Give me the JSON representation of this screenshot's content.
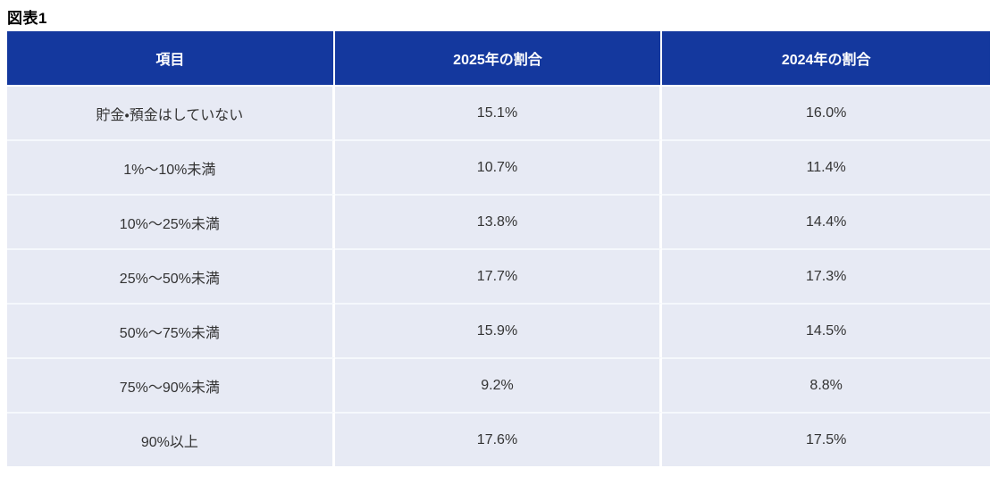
{
  "title": "図表1",
  "colors": {
    "header_bg": "#14389e",
    "header_text": "#ffffff",
    "row_bg": "#e7eaf4",
    "row_divider": "#f5f8fc",
    "column_divider": "#ffffff",
    "cell_text": "#333333",
    "title_text": "#000000"
  },
  "table": {
    "columns": [
      "項目",
      "2025年の割合",
      "2024年の割合"
    ],
    "rows": [
      {
        "item": "貯金・預金はしていない",
        "v2025": "15.1%",
        "v2024": "16.0%"
      },
      {
        "item": "1%～10%未満",
        "v2025": "10.7%",
        "v2024": "11.4%"
      },
      {
        "item": "10%～25%未満",
        "v2025": "13.8%",
        "v2024": "14.4%"
      },
      {
        "item": "25%～50%未満",
        "v2025": "17.7%",
        "v2024": "17.3%"
      },
      {
        "item": "50%～75%未満",
        "v2025": "15.9%",
        "v2024": "14.5%"
      },
      {
        "item": "75%～90%未満",
        "v2025": "9.2%",
        "v2024": "8.8%"
      },
      {
        "item": "90%以上",
        "v2025": "17.6%",
        "v2024": "17.5%"
      }
    ]
  },
  "chart_data": {
    "type": "table",
    "title": "図表1",
    "columns": [
      "項目",
      "2025年の割合",
      "2024年の割合"
    ],
    "categories": [
      "貯金・預金はしていない",
      "1%～10%未満",
      "10%～25%未満",
      "25%～50%未満",
      "50%～75%未満",
      "75%～90%未満",
      "90%以上"
    ],
    "series": [
      {
        "name": "2025年の割合",
        "values": [
          15.1,
          10.7,
          13.8,
          17.7,
          15.9,
          9.2,
          17.6
        ]
      },
      {
        "name": "2024年の割合",
        "values": [
          16.0,
          11.4,
          14.4,
          17.3,
          14.5,
          8.8,
          17.5
        ]
      }
    ],
    "unit": "%"
  }
}
